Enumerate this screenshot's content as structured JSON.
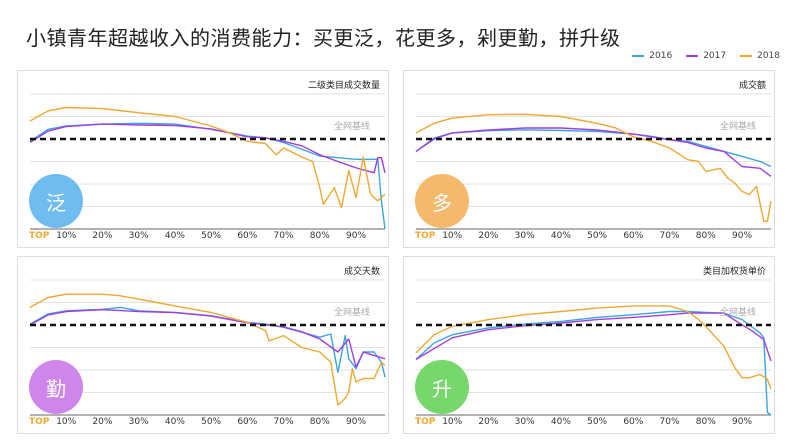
{
  "title": "小镇青年超越收入的消费能力：买更泛，花更多，剁更勤，拼升级",
  "colors": {
    "2016": "#3aa6dd",
    "2017": "#a23ee0",
    "2018": "#f0a830"
  },
  "legend": [
    "2016",
    "2017",
    "2018"
  ],
  "baseline_label": "全网基线",
  "top_label": "TOP",
  "x_ticks": [
    "10%",
    "20%",
    "30%",
    "40%",
    "50%",
    "60%",
    "70%",
    "80%",
    "90%"
  ],
  "chart_data": [
    {
      "type": "line",
      "title": "二级类目成交数量",
      "badge": "泛",
      "badge_color": "#6fbdf0",
      "xlim": [
        0,
        98
      ],
      "ylim": [
        0,
        6
      ],
      "baseline": 4,
      "grid": true,
      "legend": "top-right",
      "series": [
        {
          "name": "2016",
          "x": [
            0,
            5,
            10,
            20,
            30,
            40,
            50,
            60,
            65,
            70,
            75,
            80,
            85,
            90,
            96,
            97,
            98
          ],
          "y": [
            3.9,
            4.43,
            4.58,
            4.66,
            4.7,
            4.66,
            4.43,
            4.13,
            4.06,
            3.84,
            3.55,
            3.24,
            3.17,
            3.1,
            3.1,
            1.25,
            0
          ]
        },
        {
          "name": "2017",
          "x": [
            0,
            5,
            10,
            20,
            30,
            40,
            50,
            60,
            65,
            70,
            75,
            80,
            85,
            90,
            95,
            96,
            97,
            98
          ],
          "y": [
            3.85,
            4.35,
            4.55,
            4.66,
            4.62,
            4.6,
            4.45,
            4.1,
            4.05,
            3.9,
            3.7,
            3.3,
            3.0,
            2.72,
            2.5,
            3.17,
            3.17,
            2.5
          ]
        },
        {
          "name": "2018",
          "x": [
            0,
            5,
            10,
            20,
            30,
            40,
            50,
            55,
            60,
            65,
            68,
            70,
            75,
            78,
            80,
            81,
            84,
            86,
            88,
            90,
            92,
            94,
            96,
            98
          ],
          "y": [
            4.8,
            5.25,
            5.4,
            5.35,
            5.17,
            5.0,
            4.58,
            4.28,
            3.9,
            3.8,
            3.3,
            3.6,
            3.2,
            3.0,
            1.84,
            1.1,
            1.84,
            0.95,
            2.6,
            1.4,
            3.2,
            1.55,
            1.25,
            1.55
          ]
        }
      ]
    },
    {
      "type": "line",
      "title": "成交额",
      "badge": "多",
      "badge_color": "#f6b86a",
      "xlim": [
        0,
        98
      ],
      "ylim": [
        0,
        6
      ],
      "baseline": 4,
      "grid": true,
      "legend": "top-right",
      "series": [
        {
          "name": "2016",
          "x": [
            0,
            5,
            10,
            20,
            30,
            40,
            50,
            60,
            65,
            70,
            75,
            80,
            85,
            90,
            95,
            98
          ],
          "y": [
            3.45,
            4.04,
            4.27,
            4.37,
            4.41,
            4.38,
            4.34,
            4.22,
            4.12,
            3.97,
            3.9,
            3.67,
            3.45,
            3.23,
            3.0,
            2.78
          ]
        },
        {
          "name": "2017",
          "x": [
            0,
            5,
            10,
            20,
            30,
            40,
            50,
            60,
            65,
            70,
            75,
            80,
            85,
            90,
            95,
            98
          ],
          "y": [
            3.45,
            4.0,
            4.27,
            4.4,
            4.49,
            4.49,
            4.4,
            4.22,
            4.1,
            3.97,
            3.85,
            3.6,
            3.45,
            2.78,
            2.7,
            2.34
          ]
        },
        {
          "name": "2018",
          "x": [
            0,
            5,
            10,
            20,
            30,
            40,
            50,
            55,
            60,
            65,
            70,
            75,
            78,
            80,
            84,
            86,
            88,
            90,
            92,
            94,
            96,
            97,
            98
          ],
          "y": [
            4.27,
            4.7,
            4.93,
            5.08,
            5.1,
            5.0,
            4.7,
            4.5,
            4.1,
            3.9,
            3.6,
            3.08,
            3.0,
            2.56,
            2.7,
            2.27,
            2.04,
            1.67,
            1.53,
            1.9,
            0.34,
            0.34,
            1.23
          ]
        }
      ]
    },
    {
      "type": "line",
      "title": "成交天数",
      "badge": "勤",
      "badge_color": "#cf86ea",
      "xlim": [
        0,
        98
      ],
      "ylim": [
        0,
        6
      ],
      "baseline": 4,
      "grid": true,
      "legend": "top-right",
      "series": [
        {
          "name": "2016",
          "x": [
            0,
            5,
            10,
            20,
            25,
            30,
            40,
            50,
            60,
            65,
            70,
            75,
            80,
            83,
            85,
            87,
            88,
            90,
            92,
            95,
            97,
            98
          ],
          "y": [
            4.04,
            4.49,
            4.63,
            4.7,
            4.78,
            4.63,
            4.56,
            4.41,
            4.12,
            4.04,
            3.9,
            3.68,
            3.46,
            3.6,
            1.9,
            3.53,
            2.5,
            2.06,
            2.8,
            2.8,
            2.35,
            1.69
          ]
        },
        {
          "name": "2017",
          "x": [
            0,
            5,
            10,
            20,
            30,
            40,
            50,
            60,
            70,
            75,
            80,
            85,
            88,
            90,
            92,
            95,
            98
          ],
          "y": [
            4.0,
            4.45,
            4.6,
            4.68,
            4.6,
            4.55,
            4.4,
            4.1,
            3.92,
            3.7,
            3.38,
            2.8,
            3.38,
            2.13,
            2.8,
            2.65,
            2.5
          ]
        },
        {
          "name": "2018",
          "x": [
            0,
            5,
            10,
            20,
            25,
            30,
            35,
            40,
            50,
            55,
            60,
            65,
            66,
            70,
            75,
            80,
            83,
            85,
            87,
            88,
            89,
            90,
            92,
            95,
            97,
            98
          ],
          "y": [
            4.78,
            5.22,
            5.37,
            5.37,
            5.3,
            5.15,
            5.0,
            4.85,
            4.56,
            4.34,
            4.12,
            3.75,
            3.3,
            3.53,
            3.0,
            2.8,
            2.35,
            0.44,
            0.74,
            1.03,
            2.06,
            1.47,
            1.62,
            1.62,
            2.35,
            2.2
          ]
        }
      ]
    },
    {
      "type": "line",
      "title": "类目加权货单价",
      "badge": "升",
      "badge_color": "#76d86a",
      "xlim": [
        0,
        98
      ],
      "ylim": [
        0,
        6
      ],
      "baseline": 4,
      "grid": true,
      "legend": "top-right",
      "series": [
        {
          "name": "2016",
          "x": [
            0,
            5,
            10,
            20,
            30,
            40,
            50,
            60,
            70,
            75,
            80,
            85,
            90,
            95,
            96,
            97,
            98
          ],
          "y": [
            2.47,
            3.2,
            3.57,
            3.87,
            4.04,
            4.16,
            4.34,
            4.46,
            4.6,
            4.6,
            4.56,
            4.53,
            4.24,
            3.65,
            3.43,
            0.12,
            0
          ]
        },
        {
          "name": "2017",
          "x": [
            0,
            10,
            20,
            30,
            40,
            50,
            60,
            70,
            75,
            80,
            85,
            90,
            93,
            96,
            98
          ],
          "y": [
            2.47,
            3.43,
            3.79,
            3.97,
            4.09,
            4.24,
            4.34,
            4.46,
            4.53,
            4.53,
            4.53,
            4.01,
            3.72,
            3.35,
            2.4
          ]
        },
        {
          "name": "2018",
          "x": [
            0,
            5,
            10,
            20,
            30,
            40,
            50,
            60,
            70,
            75,
            78,
            80,
            85,
            88,
            90,
            92,
            95,
            97,
            98
          ],
          "y": [
            2.76,
            3.57,
            3.94,
            4.24,
            4.46,
            4.6,
            4.75,
            4.85,
            4.85,
            4.6,
            4.24,
            3.94,
            3.06,
            2.1,
            1.66,
            1.66,
            1.8,
            1.59,
            1.15
          ]
        }
      ]
    }
  ]
}
